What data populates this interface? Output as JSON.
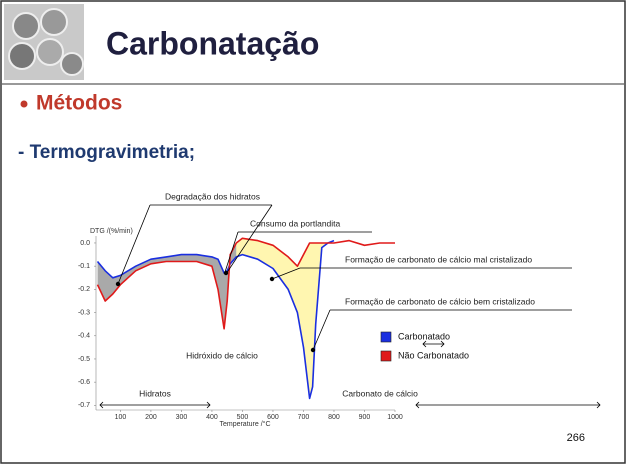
{
  "slide": {
    "title": "Carbonatação",
    "bullet": "Métodos",
    "subheading": "- Termogravimetria;",
    "page_number": "266"
  },
  "chart_data": {
    "type": "line",
    "y_label": "DTG /(%/min)",
    "x_label": "Temperature /°C",
    "x": [
      25,
      50,
      75,
      100,
      150,
      200,
      250,
      300,
      350,
      400,
      420,
      440,
      450,
      460,
      480,
      500,
      550,
      600,
      650,
      680,
      700,
      720,
      730,
      740,
      760,
      780,
      800,
      850,
      900,
      950,
      1000
    ],
    "series": [
      {
        "name": "Carbonatado",
        "color": "#1a2fe0",
        "values": [
          -0.08,
          -0.12,
          -0.15,
          -0.14,
          -0.1,
          -0.07,
          -0.06,
          -0.05,
          -0.05,
          -0.06,
          -0.07,
          -0.13,
          -0.12,
          -0.09,
          -0.06,
          -0.05,
          -0.07,
          -0.11,
          -0.2,
          -0.3,
          -0.45,
          -0.67,
          -0.62,
          -0.35,
          -0.02,
          0.0,
          0.01,
          null,
          null,
          null,
          null
        ]
      },
      {
        "name": "Não Carbonatado",
        "color": "#e01a1a",
        "values": [
          -0.18,
          -0.25,
          -0.22,
          -0.18,
          -0.12,
          -0.09,
          -0.08,
          -0.08,
          -0.08,
          -0.1,
          -0.2,
          -0.37,
          -0.25,
          -0.05,
          0.0,
          0.02,
          0.01,
          -0.01,
          -0.06,
          -0.1,
          -0.05,
          0.0,
          0.0,
          0.0,
          0.0,
          0.0,
          0.0,
          0.01,
          -0.01,
          0.0,
          0.0
        ]
      }
    ],
    "xlim": [
      20,
      1000
    ],
    "xticks": [
      100,
      200,
      300,
      400,
      500,
      600,
      700,
      800,
      900,
      1000
    ],
    "ylim": [
      -0.72,
      0.03
    ],
    "yticks": [
      {
        "value": 0,
        "label": "0.0"
      },
      -0.1,
      -0.2,
      -0.3,
      -0.4,
      -0.5,
      -0.6,
      -0.7
    ],
    "annotations": [
      "Degradação dos hidratos",
      "Consumo da portlandita",
      "Formação de carbonato de cálcio mal cristalizado",
      "Formação de carbonato de cálcio bem cristalizado",
      "Hidróxido de cálcio",
      "Hidratos",
      "Carbonato de cálcio"
    ]
  }
}
